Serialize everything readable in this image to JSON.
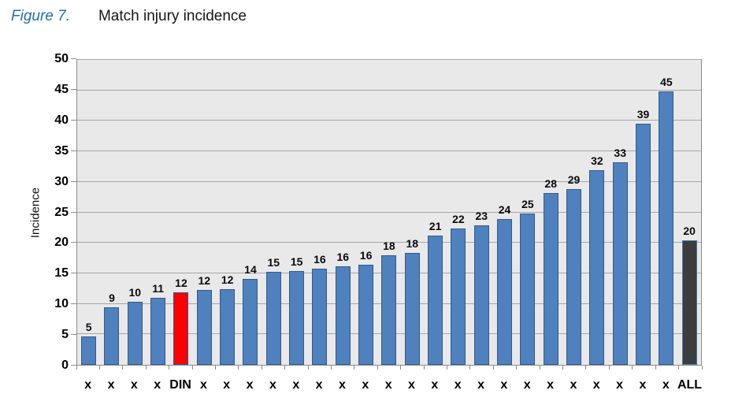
{
  "caption": {
    "figure_label": "Figure 7.",
    "title": "Match injury incidence",
    "label_color": "#1F6FB4"
  },
  "chart_data": {
    "type": "bar",
    "title": "Match injury incidence",
    "xlabel": "",
    "ylabel": "Incidence",
    "ylim": [
      0,
      50
    ],
    "yticks": [
      0,
      5,
      10,
      15,
      20,
      25,
      30,
      35,
      40,
      45,
      50
    ],
    "grid": true,
    "legend": false,
    "plot_background": "#E9E9E9",
    "highlighted_category": "DIN",
    "summary_category": "ALL",
    "categories": [
      "x",
      "x",
      "x",
      "x",
      "DIN",
      "x",
      "x",
      "x",
      "x",
      "x",
      "x",
      "x",
      "x",
      "x",
      "x",
      "x",
      "x",
      "x",
      "x",
      "x",
      "x",
      "x",
      "x",
      "x",
      "x",
      "x",
      "ALL"
    ],
    "values": [
      5,
      9,
      10,
      11,
      12,
      12,
      12,
      14,
      15,
      15,
      16,
      16,
      16,
      18,
      18,
      21,
      22,
      23,
      24,
      25,
      28,
      29,
      32,
      33,
      39,
      45,
      20
    ],
    "bars": [
      {
        "category": "x",
        "label": "5",
        "height": 4.6,
        "color": "blue"
      },
      {
        "category": "x",
        "label": "9",
        "height": 9.4,
        "color": "blue"
      },
      {
        "category": "x",
        "label": "10",
        "height": 10.4,
        "color": "blue"
      },
      {
        "category": "x",
        "label": "11",
        "height": 11.0,
        "color": "blue"
      },
      {
        "category": "DIN",
        "label": "12",
        "height": 11.9,
        "color": "red"
      },
      {
        "category": "x",
        "label": "12",
        "height": 12.3,
        "color": "blue"
      },
      {
        "category": "x",
        "label": "12",
        "height": 12.4,
        "color": "blue"
      },
      {
        "category": "x",
        "label": "14",
        "height": 14.1,
        "color": "blue"
      },
      {
        "category": "x",
        "label": "15",
        "height": 15.2,
        "color": "blue"
      },
      {
        "category": "x",
        "label": "15",
        "height": 15.4,
        "color": "blue"
      },
      {
        "category": "x",
        "label": "16",
        "height": 15.7,
        "color": "blue"
      },
      {
        "category": "x",
        "label": "16",
        "height": 16.2,
        "color": "blue"
      },
      {
        "category": "x",
        "label": "16",
        "height": 16.4,
        "color": "blue"
      },
      {
        "category": "x",
        "label": "18",
        "height": 18.0,
        "color": "blue"
      },
      {
        "category": "x",
        "label": "18",
        "height": 18.3,
        "color": "blue"
      },
      {
        "category": "x",
        "label": "21",
        "height": 21.2,
        "color": "blue"
      },
      {
        "category": "x",
        "label": "22",
        "height": 22.4,
        "color": "blue"
      },
      {
        "category": "x",
        "label": "23",
        "height": 22.9,
        "color": "blue"
      },
      {
        "category": "x",
        "label": "24",
        "height": 23.9,
        "color": "blue"
      },
      {
        "category": "x",
        "label": "25",
        "height": 24.8,
        "color": "blue"
      },
      {
        "category": "x",
        "label": "28",
        "height": 28.2,
        "color": "blue"
      },
      {
        "category": "x",
        "label": "29",
        "height": 28.8,
        "color": "blue"
      },
      {
        "category": "x",
        "label": "32",
        "height": 31.9,
        "color": "blue"
      },
      {
        "category": "x",
        "label": "33",
        "height": 33.2,
        "color": "blue"
      },
      {
        "category": "x",
        "label": "39",
        "height": 39.5,
        "color": "blue"
      },
      {
        "category": "x",
        "label": "45",
        "height": 44.8,
        "color": "blue"
      },
      {
        "category": "ALL",
        "label": "20",
        "height": 20.4,
        "color": "dark"
      }
    ],
    "colors": {
      "blue": {
        "fill": "#4E81BD",
        "border": "#36598C"
      },
      "red": {
        "fill": "#FF0000",
        "border": "#2F5597"
      },
      "dark": {
        "fill": "#3D3D3D",
        "border": "#4678AE"
      },
      "gridline": "#A6A6A6",
      "axis": "#8C8C8C",
      "text": "#000000"
    }
  }
}
